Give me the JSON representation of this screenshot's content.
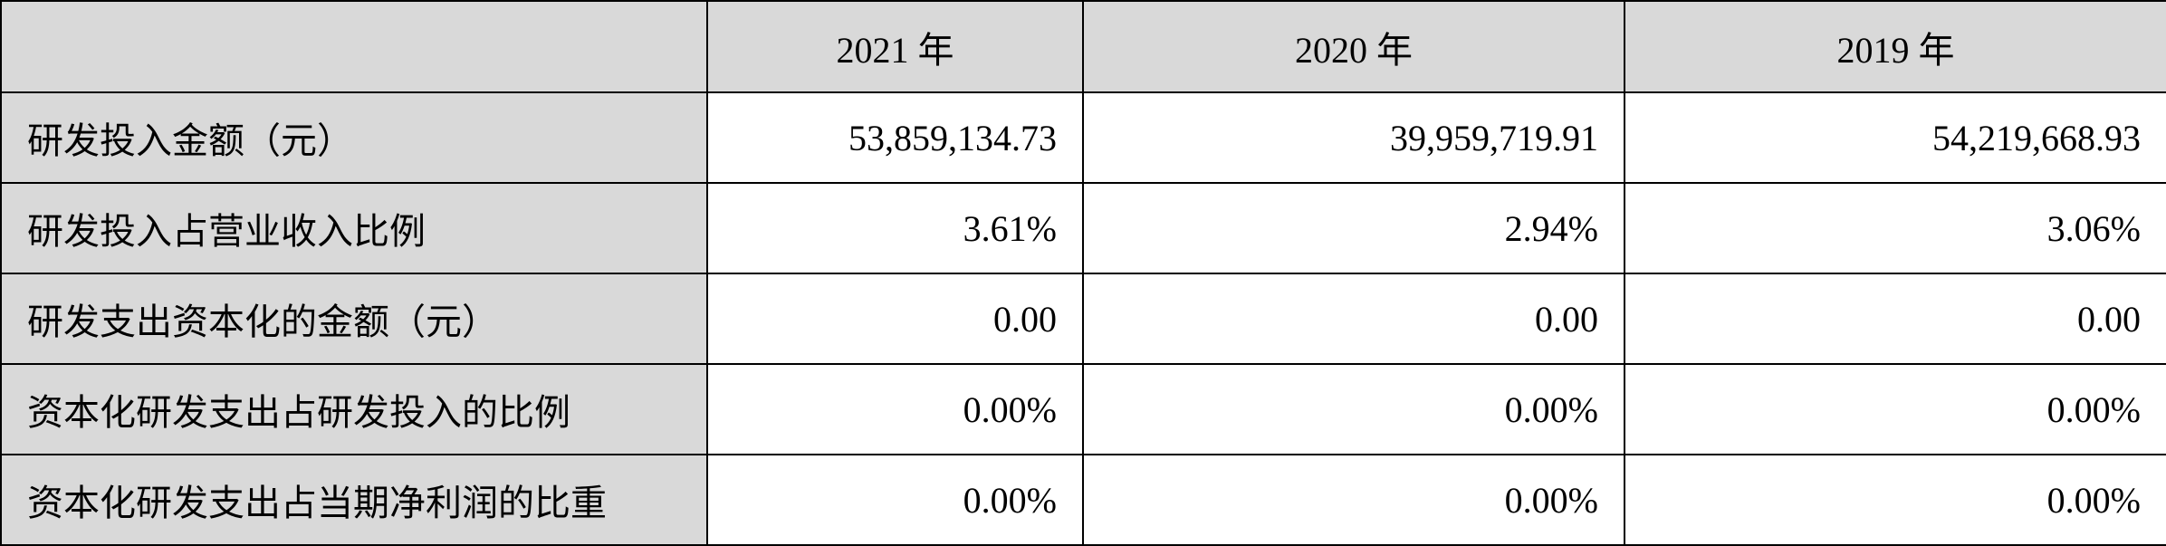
{
  "table": {
    "header": [
      "",
      "2021 年",
      "2020 年",
      "2019 年"
    ],
    "rows": [
      [
        "研发投入金额（元）",
        "53,859,134.73",
        "39,959,719.91",
        "54,219,668.93"
      ],
      [
        "研发投入占营业收入比例",
        "3.61%",
        "2.94%",
        "3.06%"
      ],
      [
        "研发支出资本化的金额（元）",
        "0.00",
        "0.00",
        "0.00"
      ],
      [
        "资本化研发支出占研发投入的比例",
        "0.00%",
        "0.00%",
        "0.00%"
      ],
      [
        "资本化研发支出占当期净利润的比重",
        "0.00%",
        "0.00%",
        "0.00%"
      ]
    ]
  }
}
